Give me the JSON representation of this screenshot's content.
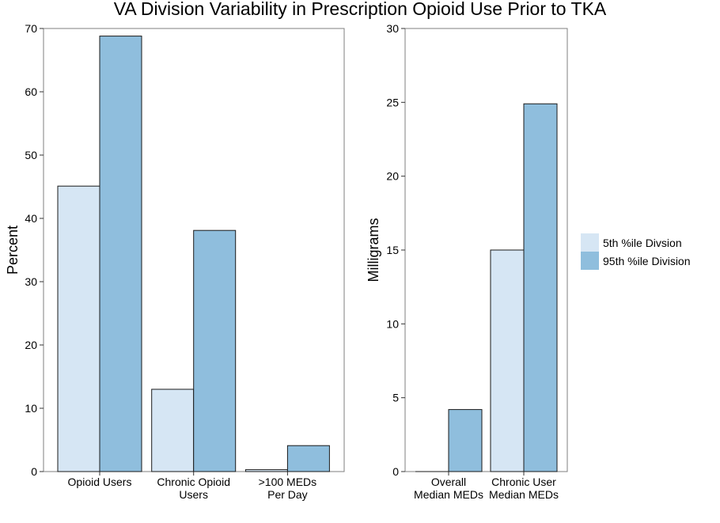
{
  "title": "VA Division Variability in Prescription Opioid Use Prior to TKA",
  "colors": {
    "fifth": "#d6e6f4",
    "ninetyfifth": "#8fbedd",
    "stroke": "#1a1a1a",
    "frame": "#7f7f7f"
  },
  "legend": {
    "placement": "right",
    "entries": [
      {
        "label": "5th %ile Divsion",
        "color": "#d6e6f4"
      },
      {
        "label": "95th %ile Division",
        "color": "#8fbedd"
      }
    ]
  },
  "chart_data": [
    {
      "type": "bar",
      "ylabel": "Percent",
      "xlabel": "",
      "ylim": [
        0,
        70
      ],
      "yticks": [
        0,
        10,
        20,
        30,
        40,
        50,
        60,
        70
      ],
      "categories": [
        [
          "Opioid Users"
        ],
        [
          "Chronic Opioid",
          "Users"
        ],
        [
          ">100 MEDs",
          "Per Day"
        ]
      ],
      "series": [
        {
          "name": "5th %ile Divsion",
          "values": [
            45.1,
            13.0,
            0.3
          ]
        },
        {
          "name": "95th %ile Division",
          "values": [
            68.8,
            38.1,
            4.1
          ]
        }
      ]
    },
    {
      "type": "bar",
      "ylabel": "Milligrams",
      "xlabel": "",
      "ylim": [
        0,
        30
      ],
      "yticks": [
        0,
        5,
        10,
        15,
        20,
        25,
        30
      ],
      "categories": [
        [
          "Overall",
          "Median MEDs"
        ],
        [
          "Chronic User",
          "Median MEDs"
        ]
      ],
      "series": [
        {
          "name": "5th %ile Divsion",
          "values": [
            0,
            15.0
          ]
        },
        {
          "name": "95th %ile Division",
          "values": [
            4.2,
            24.9
          ]
        }
      ]
    }
  ]
}
